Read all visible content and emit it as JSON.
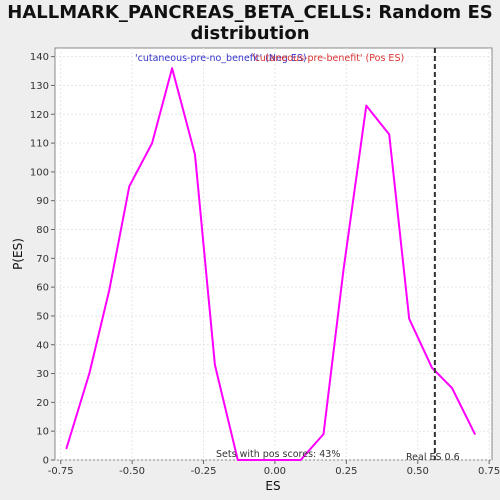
{
  "chart_data": {
    "type": "line",
    "title": "HALLMARK_PANCREAS_BETA_CELLS: Random ES distribution",
    "xlabel": "ES",
    "ylabel": "P(ES)",
    "xlim": [
      -0.77,
      0.76
    ],
    "ylim": [
      0,
      143
    ],
    "x_ticks": [
      -0.75,
      -0.5,
      -0.25,
      0.0,
      0.25,
      0.5,
      0.75
    ],
    "x_tick_labels": [
      "-0.75",
      "-0.50",
      "-0.25",
      "0.00",
      "0.25",
      "0.50",
      "0.75"
    ],
    "y_ticks": [
      0,
      10,
      20,
      30,
      40,
      50,
      60,
      70,
      80,
      90,
      100,
      110,
      120,
      130,
      140
    ],
    "y_tick_labels": [
      "0",
      "10",
      "20",
      "30",
      "40",
      "50",
      "60",
      "70",
      "80",
      "90",
      "100",
      "110",
      "120",
      "130",
      "140"
    ],
    "grid": true,
    "series": [
      {
        "color": "#ff00ff",
        "x": [
          -0.73,
          -0.65,
          -0.58,
          -0.51,
          -0.43,
          -0.36,
          -0.28,
          -0.21,
          -0.13,
          -0.06,
          0.02,
          0.09,
          0.17,
          0.24,
          0.32,
          0.4,
          0.47,
          0.55,
          0.62,
          0.7
        ],
        "y": [
          4,
          30,
          59,
          95,
          110,
          136,
          106,
          33,
          0,
          0,
          0,
          0,
          9,
          66,
          123,
          113,
          49,
          32,
          25,
          9
        ]
      }
    ],
    "reference_line": {
      "x": 0.56,
      "style": "dashed",
      "color": "#333333"
    },
    "annotations": {
      "neg_label": "'cutaneous-pre-no_benefit' (Neg ES)",
      "neg_color": "#3333cc",
      "pos_label": "'cutaneous-pre-benefit' (Pos ES)",
      "pos_color": "#dd3333",
      "pos_scores_text": "Sets with pos scores: 43%",
      "real_es_text": "Real ES 0.6"
    }
  }
}
